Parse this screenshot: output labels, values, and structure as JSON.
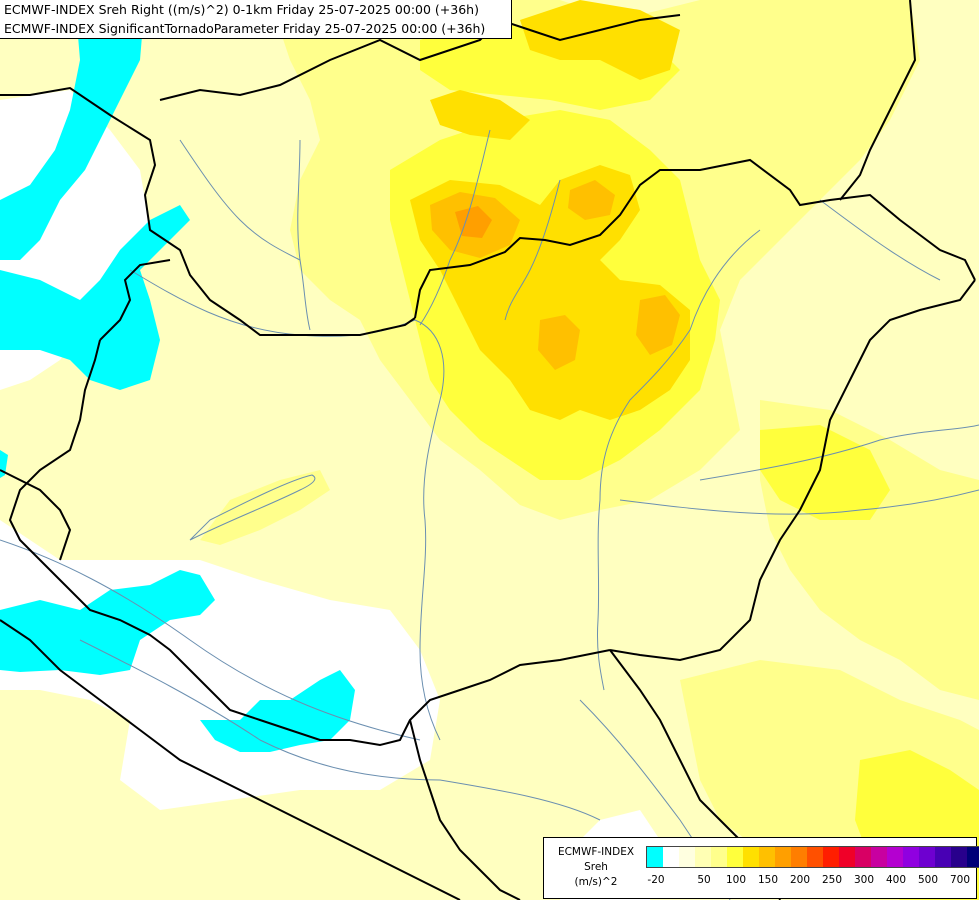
{
  "header": {
    "line1": "ECMWF-INDEX Sreh Right ((m/s)^2) 0-1km Friday 25-07-2025 00:00 (+36h)",
    "line2": "ECMWF-INDEX SignificantTornadoParameter Friday 25-07-2025 00:00 (+36h)"
  },
  "legend": {
    "line1": "ECMWF-INDEX",
    "line2": "Sreh",
    "line3": "(m/s)^2",
    "swatch_colors": [
      "#00ffff",
      "#ffffff",
      "#ffffe0",
      "#ffffb4",
      "#ffff8c",
      "#ffff3c",
      "#ffe000",
      "#ffc000",
      "#ff9f00",
      "#ff7e00",
      "#ff5000",
      "#ff1e00",
      "#f00028",
      "#d80064",
      "#c800a0",
      "#b400d0",
      "#9000e0",
      "#6e00d0",
      "#4800b4",
      "#28008c",
      "#000078"
    ],
    "tick_labels": [
      "-20",
      "50",
      "100",
      "150",
      "200",
      "250",
      "300",
      "400",
      "500",
      "700"
    ]
  },
  "map": {
    "region": "Central Europe",
    "field_colors": {
      "cyan": "#00ffff",
      "white": "#ffffff",
      "pale_yellow": "#ffffc0",
      "light_yellow": "#ffff8c",
      "yellow": "#ffff3c",
      "gold": "#ffe000",
      "orange": "#ffc000",
      "dark_orange": "#ff9f00"
    },
    "border_color": "#000000",
    "river_color": "#6b8fb0"
  }
}
